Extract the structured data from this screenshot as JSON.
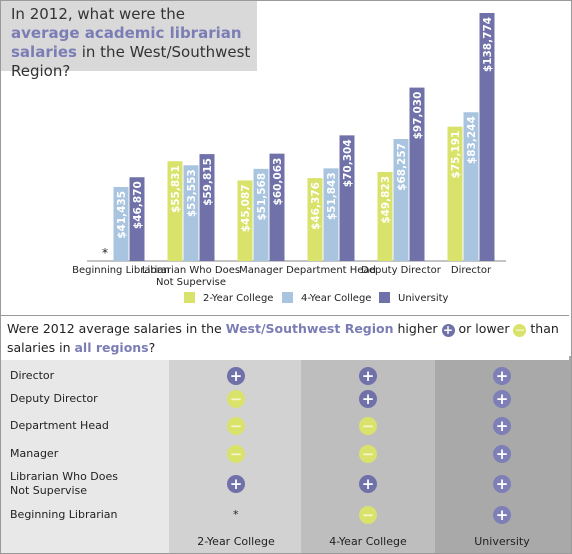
{
  "chart_data": {
    "type": "bar",
    "title_parts": [
      "In 2012, what were the ",
      "average academic librarian salaries",
      " in the West/Southwest Region?"
    ],
    "categories": [
      "Beginning Librarian",
      "Librarian Who Does Not Supervise",
      "Manager",
      "Department Head",
      "Deputy Director",
      "Director"
    ],
    "missing_label": "*",
    "series": [
      {
        "name": "2-Year College",
        "color": "#d9e26a",
        "values": [
          null,
          55831,
          45087,
          46376,
          49823,
          75191
        ],
        "value_labels": [
          null,
          "$55,831",
          "$45,087",
          "$46,376",
          "$49,823",
          "$75,191"
        ]
      },
      {
        "name": "4-Year College",
        "color": "#a9c4de",
        "values": [
          41435,
          53553,
          51568,
          51843,
          68257,
          83244
        ],
        "value_labels": [
          "$41,435",
          "$53,553",
          "$51,568",
          "$51,843",
          "$68,257",
          "$83,244"
        ]
      },
      {
        "name": "University",
        "color": "#6f71a8",
        "values": [
          46870,
          59815,
          60063,
          70304,
          97030,
          138774
        ],
        "value_labels": [
          "$46,870",
          "$59,815",
          "$60,063",
          "$70,304",
          "$97,030",
          "$138,774"
        ]
      }
    ],
    "legend": "bottom"
  },
  "table": {
    "question_parts": [
      "Were 2012 average salaries in the ",
      "West/Southwest Region",
      " higher ",
      "+",
      " or lower ",
      "−",
      " than salaries in ",
      "all regions",
      "?"
    ],
    "columns": [
      "2-Year College",
      "4-Year College",
      "University"
    ],
    "rows": [
      {
        "label": "Director",
        "cells": [
          "+",
          "+",
          "+"
        ]
      },
      {
        "label": "Deputy Director",
        "cells": [
          "−",
          "+",
          "+"
        ]
      },
      {
        "label": "Department Head",
        "cells": [
          "−",
          "−",
          "+"
        ]
      },
      {
        "label": "Manager",
        "cells": [
          "−",
          "−",
          "+"
        ]
      },
      {
        "label": "Librarian Who Does Not Supervise",
        "cells": [
          "+",
          "+",
          "+"
        ]
      },
      {
        "label": "Beginning Librarian",
        "cells": [
          "*",
          "−",
          "+"
        ]
      }
    ]
  }
}
